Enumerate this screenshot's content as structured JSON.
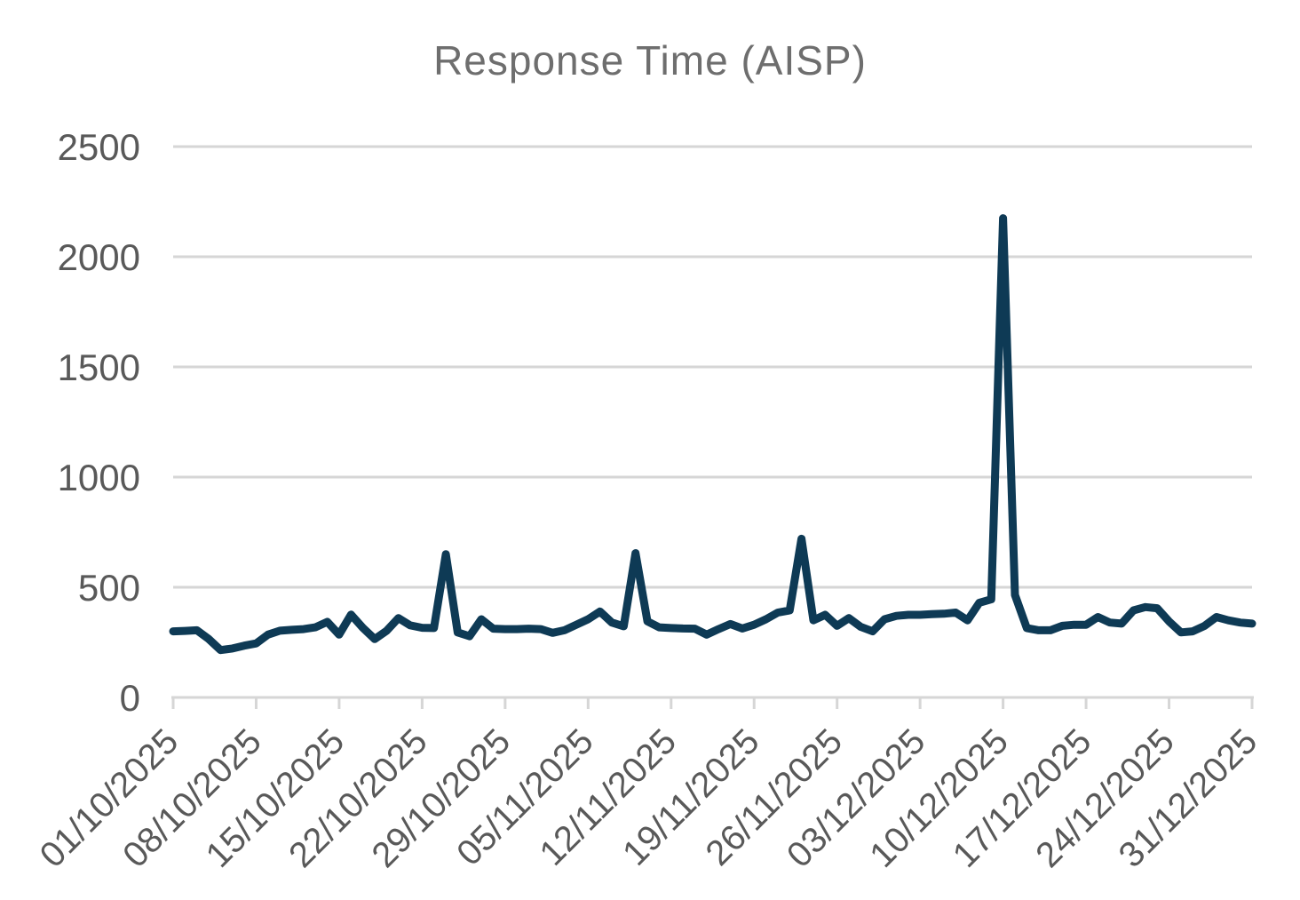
{
  "page": {
    "background": "#ffffff"
  },
  "colors": {
    "line": "#0e3a55",
    "gridline": "#d6d6d6",
    "axis_line": "#d6d6d6",
    "tick_mark": "#d6d6d6",
    "tick_label": "#595959",
    "title": "#6e6e6e",
    "background": "#ffffff"
  },
  "chart_data": {
    "type": "line",
    "title": "Response Time (AISP)",
    "xlabel": "",
    "ylabel": "",
    "legend": "none",
    "grid": "horizontal",
    "ylim": [
      0,
      2500
    ],
    "y_ticks": [
      0,
      500,
      1000,
      1500,
      2000,
      2500
    ],
    "x_start": "01/10/2025",
    "x_end": "31/12/2025",
    "x_frequency": "daily",
    "x_tick_interval_days": 7,
    "x_tick_labels": [
      "01/10/2025",
      "08/10/2025",
      "15/10/2025",
      "22/10/2025",
      "29/10/2025",
      "05/11/2025",
      "12/11/2025",
      "19/11/2025",
      "26/11/2025",
      "03/12/2025",
      "10/12/2025",
      "17/12/2025",
      "24/12/2025",
      "31/12/2025"
    ],
    "series": [
      {
        "name": "Response Time (AISP)",
        "values": [
          300,
          302,
          305,
          265,
          215,
          222,
          235,
          245,
          285,
          303,
          307,
          310,
          318,
          343,
          285,
          376,
          316,
          265,
          302,
          360,
          327,
          316,
          315,
          650,
          295,
          278,
          355,
          312,
          310,
          310,
          312,
          310,
          293,
          305,
          330,
          355,
          390,
          340,
          323,
          655,
          345,
          318,
          315,
          313,
          312,
          285,
          310,
          333,
          313,
          330,
          355,
          385,
          395,
          720,
          350,
          375,
          325,
          360,
          320,
          300,
          355,
          370,
          375,
          375,
          378,
          380,
          385,
          350,
          430,
          445,
          2175,
          465,
          315,
          305,
          305,
          325,
          330,
          330,
          365,
          340,
          335,
          395,
          410,
          405,
          345,
          295,
          300,
          325,
          365,
          350,
          340,
          335
        ]
      }
    ],
    "notable_points": [
      {
        "date": "24/10/2025",
        "value": 650
      },
      {
        "date": "09/11/2025",
        "value": 655
      },
      {
        "date": "23/11/2025",
        "value": 720
      },
      {
        "date": "10/12/2025",
        "value": 2175
      }
    ]
  }
}
